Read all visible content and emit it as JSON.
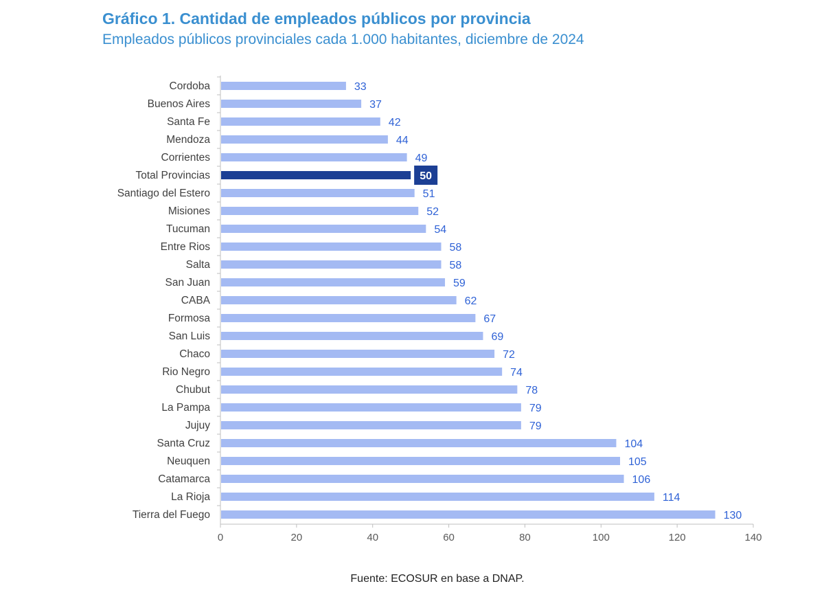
{
  "header": {
    "title": "Gráfico 1. Cantidad de empleados públicos por provincia",
    "subtitle": "Empleados públicos provinciales cada 1.000 habitantes, diciembre de 2024"
  },
  "footer": {
    "source": "Fuente: ECOSUR en base a DNAP."
  },
  "colors": {
    "bar": "#a4baf3",
    "highlight_bar": "#1c3f94",
    "value_label": "#2f62d6",
    "highlight_label": "#ffffff",
    "category_label": "#404040",
    "tick_label": "#595959",
    "axis": "#bfbfbf"
  },
  "chart_data": {
    "type": "bar",
    "orientation": "horizontal",
    "categories": [
      "Cordoba",
      "Buenos Aires",
      "Santa Fe",
      "Mendoza",
      "Corrientes",
      "Total Provincias",
      "Santiago del Estero",
      "Misiones",
      "Tucuman",
      "Entre Rios",
      "Salta",
      "San Juan",
      "CABA",
      "Formosa",
      "San Luis",
      "Chaco",
      "Rio Negro",
      "Chubut",
      "La Pampa",
      "Jujuy",
      "Santa Cruz",
      "Neuquen",
      "Catamarca",
      "La Rioja",
      "Tierra del Fuego"
    ],
    "values": [
      33,
      37,
      42,
      44,
      49,
      50,
      51,
      52,
      54,
      58,
      58,
      59,
      62,
      67,
      69,
      72,
      74,
      78,
      79,
      79,
      104,
      105,
      106,
      114,
      130
    ],
    "highlight": "Total Provincias",
    "xlim": [
      0,
      140
    ],
    "xticks": [
      0,
      20,
      40,
      60,
      80,
      100,
      120,
      140
    ],
    "grid": false,
    "legend": "none",
    "data_labels": true
  }
}
